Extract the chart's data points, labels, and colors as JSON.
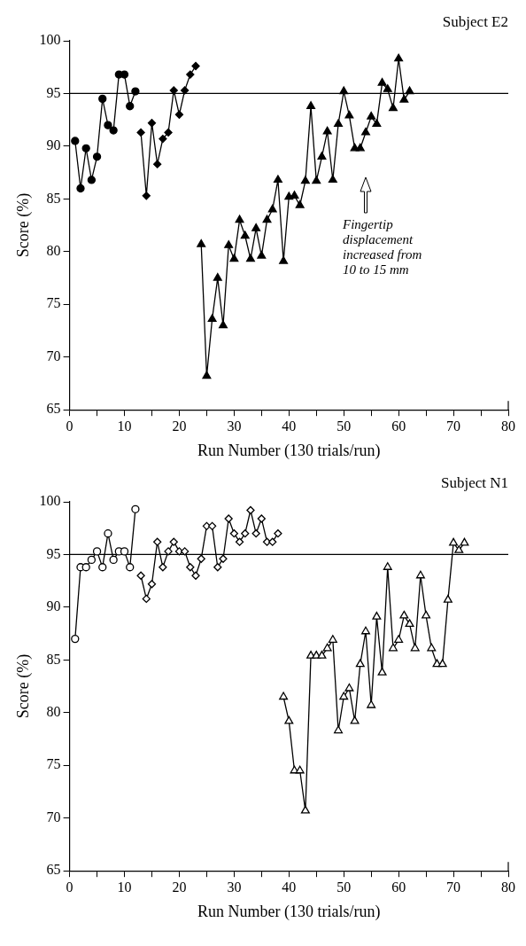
{
  "chart_data": [
    {
      "type": "line",
      "title": "Subject E2",
      "xlabel": "Run Number (130 trials/run)",
      "ylabel": "Score (%)",
      "xlim": [
        0,
        80
      ],
      "xticks": [
        0,
        {
          "value": 5,
          "label": null
        },
        10,
        {
          "value": 15,
          "label": null
        },
        20,
        {
          "value": 25,
          "label": null
        },
        30,
        {
          "value": 35,
          "label": null
        },
        40,
        {
          "value": 45,
          "label": null
        },
        50,
        {
          "value": 55,
          "label": null
        },
        60,
        {
          "value": 65,
          "label": null
        },
        70,
        {
          "value": 75,
          "label": null
        },
        80
      ],
      "ylim": [
        65,
        100
      ],
      "yticks": [
        65,
        70,
        75,
        80,
        85,
        90,
        95,
        100
      ],
      "grid": false,
      "legend": false,
      "ref_lines": [
        {
          "axis": "y",
          "value": 95
        }
      ],
      "annotations": [
        "Fingertip displacement increased from 10 to 15 mm"
      ],
      "series": [
        {
          "marker": "circle",
          "color": "#000000",
          "x": [
            1,
            2,
            3,
            4,
            5,
            6,
            7,
            8,
            9,
            10,
            11,
            12
          ],
          "values": [
            90.5,
            86,
            89.8,
            86.8,
            89,
            94.5,
            92,
            91.5,
            96.8,
            96.8,
            93.8,
            95.2
          ]
        },
        {
          "marker": "diamond",
          "color": "#000000",
          "x": [
            13,
            14,
            15,
            16,
            17,
            18,
            19,
            20,
            21,
            22,
            23
          ],
          "values": [
            91.3,
            85.3,
            92.2,
            88.3,
            90.7,
            91.3,
            95.3,
            93,
            95.3,
            96.8,
            97.6
          ]
        },
        {
          "marker": "triangle",
          "color": "#000000",
          "x": [
            24,
            25,
            26,
            27,
            28,
            29,
            30,
            31,
            32,
            33,
            34,
            35,
            36,
            37,
            38,
            39,
            40,
            41,
            42,
            43,
            44,
            45,
            46,
            47,
            48,
            49,
            50,
            51,
            52,
            53,
            54,
            55,
            56,
            57,
            58,
            59,
            60,
            61,
            62
          ],
          "values": [
            80.7,
            68.2,
            73.6,
            77.5,
            73,
            80.6,
            79.3,
            83,
            81.5,
            79.3,
            82.2,
            79.6,
            83,
            84,
            86.8,
            79.1,
            85.2,
            85.3,
            84.4,
            86.7,
            93.8,
            86.7,
            89,
            91.4,
            86.8,
            92.1,
            95.2,
            92.9,
            89.8,
            89.8,
            91.3,
            92.8,
            92.1,
            96,
            95.4,
            93.6,
            98.3,
            94.4,
            95.2
          ]
        }
      ]
    },
    {
      "type": "line",
      "title": "Subject N1",
      "xlabel": "Run Number (130 trials/run)",
      "ylabel": "Score (%)",
      "xlim": [
        0,
        80
      ],
      "xticks": [
        0,
        {
          "value": 5,
          "label": null
        },
        10,
        {
          "value": 15,
          "label": null
        },
        20,
        {
          "value": 25,
          "label": null
        },
        30,
        {
          "value": 35,
          "label": null
        },
        40,
        {
          "value": 45,
          "label": null
        },
        50,
        {
          "value": 55,
          "label": null
        },
        60,
        {
          "value": 65,
          "label": null
        },
        70,
        {
          "value": 75,
          "label": null
        },
        80
      ],
      "ylim": [
        65,
        100
      ],
      "yticks": [
        65,
        70,
        75,
        80,
        85,
        90,
        95,
        100
      ],
      "grid": false,
      "legend": false,
      "ref_lines": [
        {
          "axis": "y",
          "value": 95
        }
      ],
      "series": [
        {
          "marker": "circle",
          "color": "#000000",
          "x": [
            1,
            2,
            3,
            4,
            5,
            6,
            7,
            8,
            9,
            10,
            11,
            12
          ],
          "values": [
            87,
            93.8,
            93.8,
            94.5,
            95.3,
            93.8,
            97,
            94.5,
            95.3,
            95.3,
            93.8,
            99.3
          ]
        },
        {
          "marker": "diamond",
          "color": "#000000",
          "x": [
            13,
            14,
            15,
            16,
            17,
            18,
            19,
            20,
            21,
            22,
            23,
            24,
            25,
            26,
            27,
            28,
            29,
            30,
            31,
            32,
            33,
            34,
            35,
            36,
            37,
            38
          ],
          "values": [
            93,
            90.8,
            92.2,
            96.2,
            93.8,
            95.3,
            96.2,
            95.3,
            95.3,
            93.8,
            93,
            94.6,
            97.7,
            97.7,
            93.8,
            94.6,
            98.4,
            97,
            96.2,
            97,
            99.2,
            97,
            98.4,
            96.2,
            96.2,
            97
          ]
        },
        {
          "marker": "triangle",
          "color": "#000000",
          "x": [
            39,
            40,
            41,
            42,
            43,
            44,
            45,
            46,
            47,
            48,
            49,
            50,
            51,
            52,
            53,
            54,
            55,
            56,
            57,
            58,
            59,
            60,
            61,
            62,
            63,
            64,
            65,
            66,
            67,
            68,
            69,
            70,
            71,
            72
          ],
          "values": [
            81.5,
            79.2,
            74.5,
            74.5,
            70.7,
            85.4,
            85.4,
            85.4,
            86.1,
            86.9,
            78.3,
            81.5,
            82.3,
            79.2,
            84.6,
            87.7,
            80.7,
            89.1,
            83.8,
            93.8,
            86.1,
            86.9,
            89.2,
            88.4,
            86.1,
            93,
            89.2,
            86.1,
            84.6,
            84.6,
            90.7,
            96.1,
            95.4,
            96.1
          ]
        }
      ]
    }
  ]
}
